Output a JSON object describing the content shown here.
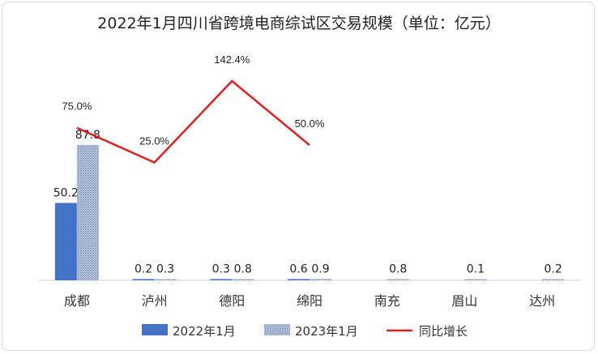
{
  "chart_data": {
    "type": "bar",
    "title": "2022年1月四川省跨境电商综试区交易规模（单位：亿元）",
    "categories": [
      "成都",
      "泸州",
      "德阳",
      "绵阳",
      "南充",
      "眉山",
      "达州"
    ],
    "series": [
      {
        "name": "2022年1月",
        "kind": "bar",
        "color": "#4472c4",
        "values": [
          50.2,
          0.2,
          0.3,
          0.6,
          null,
          null,
          null
        ],
        "labels": [
          "50.2",
          "0.2",
          "0.3",
          "0.6",
          "",
          "",
          ""
        ]
      },
      {
        "name": "2023年1月",
        "kind": "bar",
        "color": "#a9b8d6",
        "pattern": "dots",
        "values": [
          87.8,
          0.3,
          0.8,
          0.9,
          0.8,
          0.1,
          0.2
        ],
        "labels": [
          "87.8",
          "0.3",
          "0.8",
          "0.9",
          "0.8",
          "0.1",
          "0.2"
        ]
      },
      {
        "name": "同比增长",
        "kind": "line",
        "color": "#e02020",
        "values": [
          75.0,
          25.0,
          142.4,
          50.0,
          null,
          null,
          null
        ],
        "labels": [
          "75.0%",
          "25.0%",
          "142.4%",
          "50.0%",
          "",
          "",
          ""
        ]
      }
    ],
    "legend": "bottom"
  }
}
